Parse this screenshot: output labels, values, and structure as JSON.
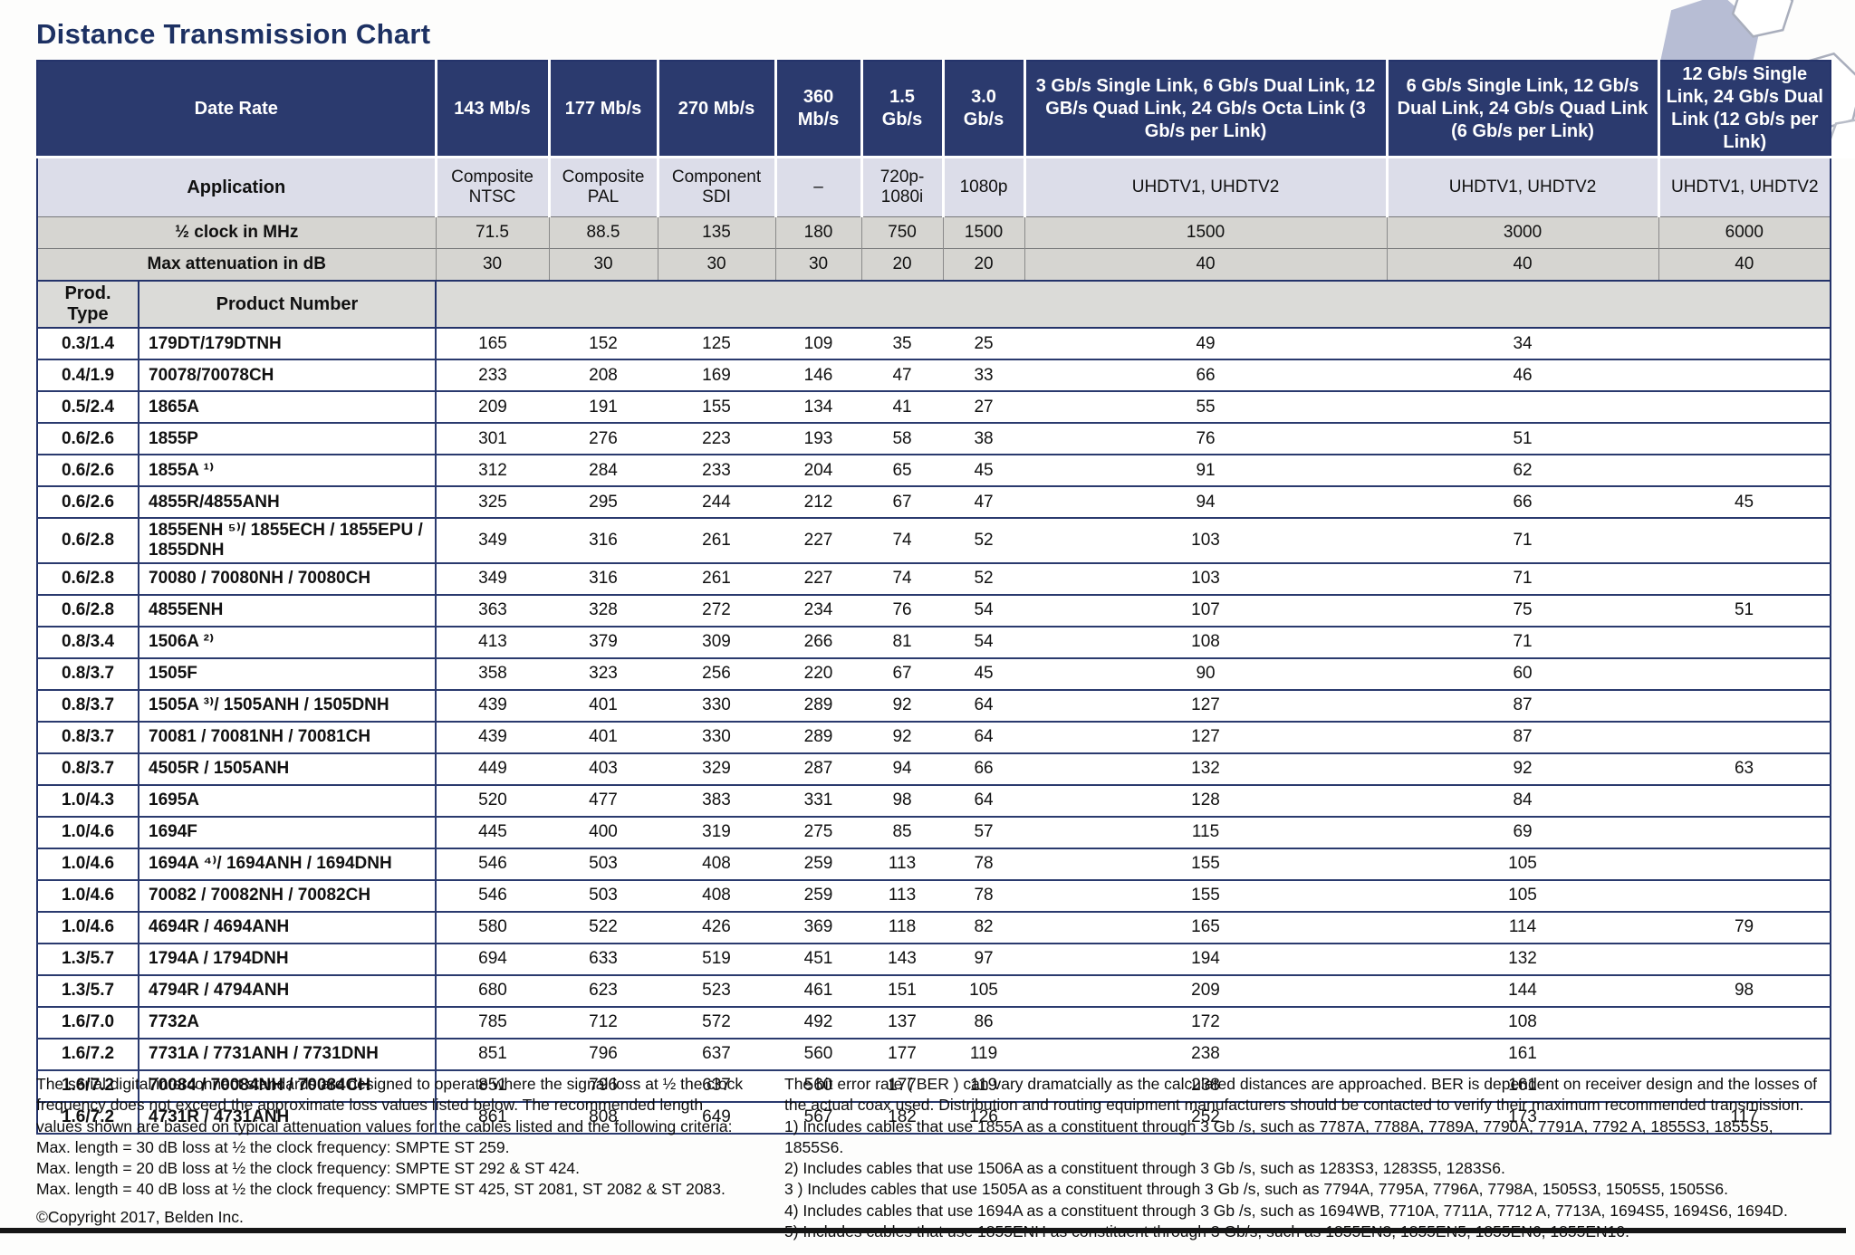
{
  "page": {
    "title": "Distance Transmission Chart",
    "copyright": "©Copyright 2017, Belden Inc."
  },
  "colors": {
    "header_navy": "#2b3a6e",
    "application_row_bg": "#dcdde9",
    "gray_row_bg": "#d6d5d1",
    "border_navy": "#24336a",
    "title_color": "#1d3163"
  },
  "icons": {
    "hexagon_decoration": "hexagon-cluster"
  },
  "table": {
    "header": {
      "date_rate_label": "Date Rate",
      "application_label": "Application",
      "half_clock_label": "½ clock in MHz",
      "max_atten_label": "Max attenuation in dB",
      "prod_type_label": "Prod. Type",
      "product_number_label": "Product Number",
      "rate_columns": [
        {
          "rate": "143 Mb/s",
          "application": "Composite NTSC",
          "half_clock": "71.5",
          "max_atten": "30"
        },
        {
          "rate": "177 Mb/s",
          "application": "Composite PAL",
          "half_clock": "88.5",
          "max_atten": "30"
        },
        {
          "rate": "270 Mb/s",
          "application": "Component SDI",
          "half_clock": "135",
          "max_atten": "30"
        },
        {
          "rate": "360 Mb/s",
          "application": "–",
          "half_clock": "180",
          "max_atten": "30"
        },
        {
          "rate": "1.5 Gb/s",
          "application": "720p-1080i",
          "half_clock": "750",
          "max_atten": "20"
        },
        {
          "rate": "3.0 Gb/s",
          "application": "1080p",
          "half_clock": "1500",
          "max_atten": "20"
        },
        {
          "rate": "3 Gb/s Single Link, 6 Gb/s Dual Link, 12 GB/s Quad Link, 24 Gb/s Octa Link (3 Gb/s per Link)",
          "application": "UHDTV1, UHDTV2",
          "half_clock": "1500",
          "max_atten": "40"
        },
        {
          "rate": "6 Gb/s Single Link, 12 Gb/s Dual Link, 24 Gb/s Quad Link (6 Gb/s per Link)",
          "application": "UHDTV1, UHDTV2",
          "half_clock": "3000",
          "max_atten": "40"
        },
        {
          "rate": "12 Gb/s Single Link, 24 Gb/s Dual Link (12 Gb/s per Link)",
          "application": "UHDTV1, UHDTV2",
          "half_clock": "6000",
          "max_atten": "40"
        }
      ]
    },
    "rows": [
      {
        "prod_type": "0.3/1.4",
        "product": "179DT/179DTNH",
        "values": [
          "165",
          "152",
          "125",
          "109",
          "35",
          "25",
          "49",
          "34",
          ""
        ]
      },
      {
        "prod_type": "0.4/1.9",
        "product": "70078/70078CH",
        "values": [
          "233",
          "208",
          "169",
          "146",
          "47",
          "33",
          "66",
          "46",
          ""
        ]
      },
      {
        "prod_type": "0.5/2.4",
        "product": "1865A",
        "values": [
          "209",
          "191",
          "155",
          "134",
          "41",
          "27",
          "55",
          "",
          ""
        ]
      },
      {
        "prod_type": "0.6/2.6",
        "product": "1855P",
        "values": [
          "301",
          "276",
          "223",
          "193",
          "58",
          "38",
          "76",
          "51",
          ""
        ]
      },
      {
        "prod_type": "0.6/2.6",
        "product": "1855A ¹⁾",
        "values": [
          "312",
          "284",
          "233",
          "204",
          "65",
          "45",
          "91",
          "62",
          ""
        ]
      },
      {
        "prod_type": "0.6/2.6",
        "product": "4855R/4855ANH",
        "values": [
          "325",
          "295",
          "244",
          "212",
          "67",
          "47",
          "94",
          "66",
          "45"
        ]
      },
      {
        "prod_type": "0.6/2.8",
        "product": "1855ENH ⁵⁾/ 1855ECH / 1855EPU / 1855DNH",
        "values": [
          "349",
          "316",
          "261",
          "227",
          "74",
          "52",
          "103",
          "71",
          ""
        ]
      },
      {
        "prod_type": "0.6/2.8",
        "product": "70080 / 70080NH / 70080CH",
        "values": [
          "349",
          "316",
          "261",
          "227",
          "74",
          "52",
          "103",
          "71",
          ""
        ]
      },
      {
        "prod_type": "0.6/2.8",
        "product": "4855ENH",
        "values": [
          "363",
          "328",
          "272",
          "234",
          "76",
          "54",
          "107",
          "75",
          "51"
        ]
      },
      {
        "prod_type": "0.8/3.4",
        "product": "1506A ²⁾",
        "values": [
          "413",
          "379",
          "309",
          "266",
          "81",
          "54",
          "108",
          "71",
          ""
        ]
      },
      {
        "prod_type": "0.8/3.7",
        "product": "1505F",
        "values": [
          "358",
          "323",
          "256",
          "220",
          "67",
          "45",
          "90",
          "60",
          ""
        ]
      },
      {
        "prod_type": "0.8/3.7",
        "product": "1505A ³⁾/ 1505ANH / 1505DNH",
        "values": [
          "439",
          "401",
          "330",
          "289",
          "92",
          "64",
          "127",
          "87",
          ""
        ]
      },
      {
        "prod_type": "0.8/3.7",
        "product": "70081 / 70081NH / 70081CH",
        "values": [
          "439",
          "401",
          "330",
          "289",
          "92",
          "64",
          "127",
          "87",
          ""
        ]
      },
      {
        "prod_type": "0.8/3.7",
        "product": "4505R / 1505ANH",
        "values": [
          "449",
          "403",
          "329",
          "287",
          "94",
          "66",
          "132",
          "92",
          "63"
        ]
      },
      {
        "prod_type": "1.0/4.3",
        "product": "1695A",
        "values": [
          "520",
          "477",
          "383",
          "331",
          "98",
          "64",
          "128",
          "84",
          ""
        ]
      },
      {
        "prod_type": "1.0/4.6",
        "product": "1694F",
        "values": [
          "445",
          "400",
          "319",
          "275",
          "85",
          "57",
          "115",
          "69",
          ""
        ]
      },
      {
        "prod_type": "1.0/4.6",
        "product": "1694A ⁴⁾/ 1694ANH / 1694DNH",
        "values": [
          "546",
          "503",
          "408",
          "259",
          "113",
          "78",
          "155",
          "105",
          ""
        ]
      },
      {
        "prod_type": "1.0/4.6",
        "product": "70082 / 70082NH / 70082CH",
        "values": [
          "546",
          "503",
          "408",
          "259",
          "113",
          "78",
          "155",
          "105",
          ""
        ]
      },
      {
        "prod_type": "1.0/4.6",
        "product": "4694R / 4694ANH",
        "values": [
          "580",
          "522",
          "426",
          "369",
          "118",
          "82",
          "165",
          "114",
          "79"
        ]
      },
      {
        "prod_type": "1.3/5.7",
        "product": "1794A / 1794DNH",
        "values": [
          "694",
          "633",
          "519",
          "451",
          "143",
          "97",
          "194",
          "132",
          ""
        ]
      },
      {
        "prod_type": "1.3/5.7",
        "product": "4794R / 4794ANH",
        "values": [
          "680",
          "623",
          "523",
          "461",
          "151",
          "105",
          "209",
          "144",
          "98"
        ]
      },
      {
        "prod_type": "1.6/7.0",
        "product": "7732A",
        "values": [
          "785",
          "712",
          "572",
          "492",
          "137",
          "86",
          "172",
          "108",
          ""
        ]
      },
      {
        "prod_type": "1.6/7.2",
        "product": "7731A / 7731ANH / 7731DNH",
        "values": [
          "851",
          "796",
          "637",
          "560",
          "177",
          "119",
          "238",
          "161",
          ""
        ]
      },
      {
        "prod_type": "1.6/7.2",
        "product": "70084 / 70084NH / 70084CH",
        "values": [
          "851",
          "796",
          "637",
          "560",
          "177",
          "119",
          "238",
          "161",
          ""
        ]
      },
      {
        "prod_type": "1.6/7.2",
        "product": "4731R / 4731ANH",
        "values": [
          "861",
          "808",
          "649",
          "567",
          "182",
          "126",
          "252",
          "173",
          "117"
        ]
      }
    ]
  },
  "footnotes": {
    "left_lines": [
      "The serial digital interconnect standards are designed to operate where the signal loss at ½ the clock",
      "frequency does not exceed the approximate loss values listed below. The recommended length",
      "values shown are based on typical attenuation values for the cables listed and the following criteria:",
      "Max. length = 30 dB loss at ½ the clock frequency: SMPTE ST 259.",
      "Max. length = 20 dB loss at ½ the clock frequency: SMPTE ST 292 & ST 424.",
      "Max. length = 40 dB loss at ½ the clock frequency: SMPTE ST 425, ST 2081, ST 2082 & ST 2083."
    ],
    "right_lines": [
      "The bit error rate ( BER ) can vary dramatcially as the calculated distances are approached. BER is dependent on receiver design and the losses of",
      "the actual coax used. Distribution and routing equipment manufacturers should be contacted to verify their maximum recommended transmission.",
      "1) Includes cables that use 1855A as a constituent through 3 Gb /s, such as 7787A, 7788A, 7789A, 7790A, 7791A, 7792 A, 1855S3, 1855S5, 1855S6.",
      "2) Includes cables that use 1506A as a constituent through 3 Gb /s, such as 1283S3, 1283S5, 1283S6.",
      "3 ) Includes cables that use 1505A as a constituent through 3 Gb /s, such as 7794A, 7795A, 7796A, 7798A, 1505S3, 1505S5, 1505S6.",
      "4) Includes cables that use 1694A as a constituent through 3 Gb /s, such as 1694WB, 7710A, 7711A, 7712 A, 7713A, 1694S5, 1694S6, 1694D.",
      "5) Includes cables that use 1855ENH as constituent through 3 Gb/s, such as 1855EN3, 1855EN5, 1855EN6, 1855EN10."
    ]
  }
}
